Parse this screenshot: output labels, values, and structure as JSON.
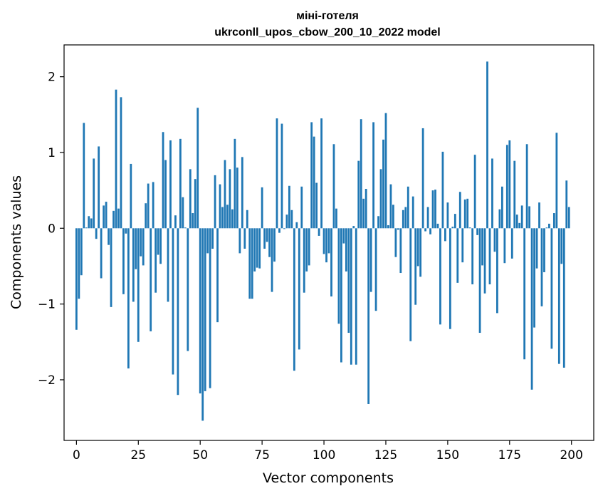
{
  "chart_data": {
    "type": "bar",
    "title": "міні-готеля",
    "subtitle": "ukrconll_upos_cbow_200_10_2022 model",
    "xlabel": "Vector components",
    "ylabel": "Components values",
    "xlim": [
      -5,
      209
    ],
    "ylim": [
      -2.8,
      2.42
    ],
    "xticks": [
      0,
      25,
      50,
      75,
      100,
      125,
      150,
      175,
      200
    ],
    "xtick_labels": [
      "0",
      "25",
      "50",
      "75",
      "100",
      "125",
      "150",
      "175",
      "200"
    ],
    "yticks": [
      -2,
      -1,
      0,
      1,
      2
    ],
    "ytick_labels": [
      "−2",
      "−1",
      "0",
      "1",
      "2"
    ],
    "grid": false,
    "bar_color": "#1f77b4",
    "x": [
      0,
      1,
      2,
      3,
      4,
      5,
      6,
      7,
      8,
      9,
      10,
      11,
      12,
      13,
      14,
      15,
      16,
      17,
      18,
      19,
      20,
      21,
      22,
      23,
      24,
      25,
      26,
      27,
      28,
      29,
      30,
      31,
      32,
      33,
      34,
      35,
      36,
      37,
      38,
      39,
      40,
      41,
      42,
      43,
      44,
      45,
      46,
      47,
      48,
      49,
      50,
      51,
      52,
      53,
      54,
      55,
      56,
      57,
      58,
      59,
      60,
      61,
      62,
      63,
      64,
      65,
      66,
      67,
      68,
      69,
      70,
      71,
      72,
      73,
      74,
      75,
      76,
      77,
      78,
      79,
      80,
      81,
      82,
      83,
      84,
      85,
      86,
      87,
      88,
      89,
      90,
      91,
      92,
      93,
      94,
      95,
      96,
      97,
      98,
      99,
      100,
      101,
      102,
      103,
      104,
      105,
      106,
      107,
      108,
      109,
      110,
      111,
      112,
      113,
      114,
      115,
      116,
      117,
      118,
      119,
      120,
      121,
      122,
      123,
      124,
      125,
      126,
      127,
      128,
      129,
      130,
      131,
      132,
      133,
      134,
      135,
      136,
      137,
      138,
      139,
      140,
      141,
      142,
      143,
      144,
      145,
      146,
      147,
      148,
      149,
      150,
      151,
      152,
      153,
      154,
      155,
      156,
      157,
      158,
      159,
      160,
      161,
      162,
      163,
      164,
      165,
      166,
      167,
      168,
      169,
      170,
      171,
      172,
      173,
      174,
      175,
      176,
      177,
      178,
      179,
      180,
      181,
      182,
      183,
      184,
      185,
      186,
      187,
      188,
      189,
      190,
      191,
      192,
      193,
      194,
      195,
      196,
      197,
      198,
      199
    ],
    "values": [
      -1.34,
      -0.93,
      -0.62,
      1.39,
      0.01,
      0.16,
      0.13,
      0.92,
      -0.14,
      1.08,
      -0.66,
      0.3,
      0.35,
      -0.22,
      -1.04,
      0.23,
      1.83,
      0.26,
      1.73,
      -0.87,
      -0.07,
      -1.85,
      0.85,
      -0.97,
      -0.54,
      -1.5,
      -0.37,
      -0.49,
      0.33,
      0.59,
      -1.36,
      0.61,
      -0.85,
      -0.35,
      -0.47,
      1.27,
      0.9,
      -0.97,
      1.16,
      -1.93,
      0.17,
      -2.2,
      1.18,
      0.41,
      0.01,
      -1.62,
      0.78,
      0.2,
      0.65,
      1.59,
      -2.18,
      -2.54,
      -2.15,
      -0.33,
      -2.11,
      -0.27,
      0.7,
      -1.24,
      0.58,
      0.28,
      0.9,
      0.31,
      0.78,
      0.25,
      1.18,
      0.8,
      -0.33,
      0.94,
      -0.27,
      0.24,
      -0.93,
      -0.93,
      -0.57,
      -0.52,
      -0.53,
      0.54,
      -0.27,
      -0.18,
      -0.38,
      -0.84,
      -0.44,
      1.45,
      -0.06,
      1.38,
      -0.01,
      0.18,
      0.56,
      0.24,
      -1.88,
      0.08,
      -1.6,
      0.55,
      -0.85,
      -0.57,
      -0.49,
      1.4,
      1.21,
      0.6,
      -0.1,
      1.45,
      -0.34,
      -0.45,
      -0.33,
      -0.9,
      1.11,
      0.26,
      -1.26,
      -1.77,
      -0.2,
      -0.57,
      -1.38,
      -1.8,
      0.03,
      -1.8,
      0.89,
      1.44,
      0.39,
      0.52,
      -2.32,
      -0.84,
      1.4,
      -1.09,
      0.16,
      0.78,
      1.17,
      1.52,
      0.04,
      0.58,
      0.31,
      -0.38,
      -0.02,
      -0.59,
      0.24,
      0.28,
      0.55,
      -1.49,
      0.42,
      -1.01,
      -0.5,
      -0.64,
      1.32,
      -0.04,
      0.28,
      -0.08,
      0.5,
      0.51,
      0.06,
      -1.27,
      1.01,
      -0.17,
      0.34,
      -1.33,
      0.02,
      0.19,
      -0.72,
      0.48,
      -0.45,
      0.38,
      0.39,
      0.01,
      -0.74,
      0.97,
      -0.09,
      -1.38,
      -0.49,
      -0.86,
      2.2,
      -0.74,
      0.92,
      -0.31,
      -1.12,
      0.25,
      0.55,
      -0.46,
      1.1,
      1.16,
      -0.4,
      0.89,
      0.18,
      0.07,
      0.3,
      -1.73,
      1.11,
      0.29,
      -2.13,
      -1.31,
      -0.53,
      0.34,
      -1.03,
      -0.58,
      0.01,
      0.06,
      -1.59,
      0.2,
      1.26,
      -1.79,
      -0.47,
      -1.84,
      0.63,
      0.28
    ]
  }
}
